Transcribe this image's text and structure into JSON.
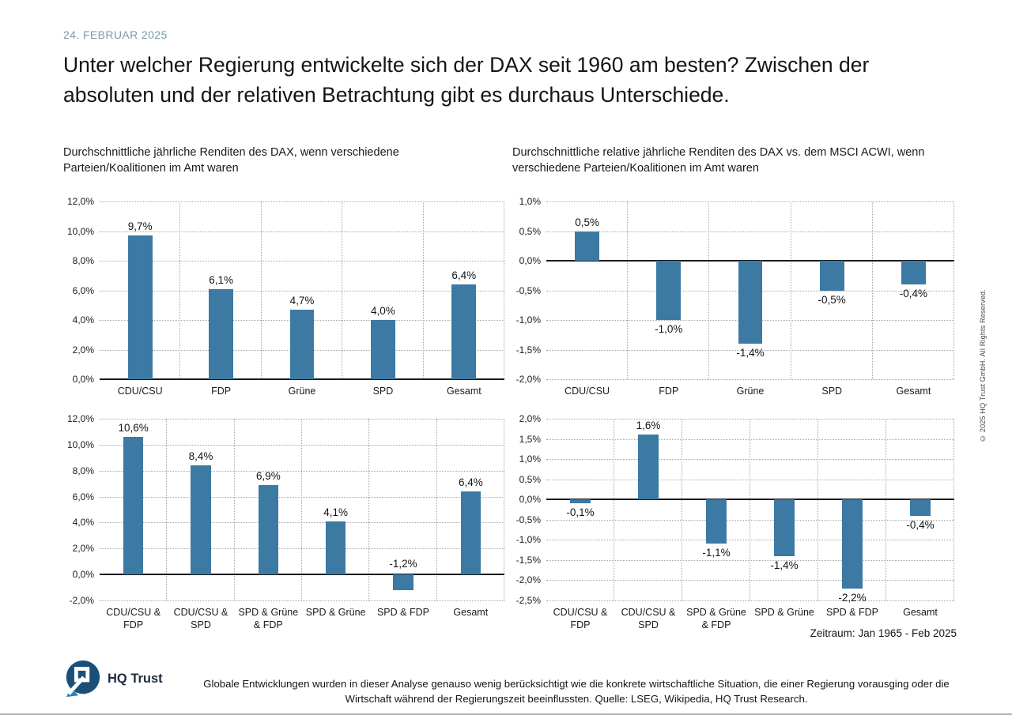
{
  "header": {
    "date": "24. FEBRUAR 2025",
    "title": "Unter welcher Regierung entwickelte sich der DAX seit 1960 am besten? Zwischen der absoluten und der relativen Betrachtung gibt es durchaus Unterschiede."
  },
  "chart_data": [
    {
      "type": "bar",
      "title": "Durchschnittliche jährliche Renditen des DAX, wenn verschiedene Parteien/Koalitionen im Amt waren",
      "categories": [
        "CDU/CSU",
        "FDP",
        "Grüne",
        "SPD",
        "Gesamt"
      ],
      "values": [
        9.7,
        6.1,
        4.7,
        4.0,
        6.4
      ],
      "value_labels": [
        "9,7%",
        "6,1%",
        "4,7%",
        "4,0%",
        "6,4%"
      ],
      "ylim": [
        0,
        12
      ],
      "ytick_step": 2,
      "ytick_labels": [
        "12,0%",
        "10,0%",
        "8,0%",
        "6,0%",
        "4,0%",
        "2,0%",
        "0,0%"
      ],
      "grid": true,
      "legend": "none",
      "bar_color": "#3c7aa3",
      "neg_label": "below_bar"
    },
    {
      "type": "bar",
      "title": "Durchschnittliche relative jährliche Renditen des DAX vs. dem MSCI ACWI, wenn verschiedene Parteien/Koalitionen im Amt waren",
      "categories": [
        "CDU/CSU",
        "FDP",
        "Grüne",
        "SPD",
        "Gesamt"
      ],
      "values": [
        0.5,
        -1.0,
        -1.4,
        -0.5,
        -0.4
      ],
      "value_labels": [
        "0,5%",
        "-1,0%",
        "-1,4%",
        "-0,5%",
        "-0,4%"
      ],
      "ylim": [
        -2,
        1
      ],
      "ytick_step": 0.5,
      "ytick_labels": [
        "1,0%",
        "0,5%",
        "0,0%",
        "-0,5%",
        "-1,0%",
        "-1,5%",
        "-2,0%"
      ],
      "grid": true,
      "legend": "none",
      "bar_color": "#3c7aa3",
      "neg_label": "below_bar"
    },
    {
      "type": "bar",
      "title": "",
      "categories": [
        "CDU/CSU &\nFDP",
        "CDU/CSU &\nSPD",
        "SPD & Grüne\n& FDP",
        "SPD & Grüne",
        "SPD & FDP",
        "Gesamt"
      ],
      "values": [
        10.6,
        8.4,
        6.9,
        4.1,
        -1.2,
        6.4
      ],
      "value_labels": [
        "10,6%",
        "8,4%",
        "6,9%",
        "4,1%",
        "-1,2%",
        "6,4%"
      ],
      "ylim": [
        -2,
        12
      ],
      "ytick_step": 2,
      "ytick_labels": [
        "12,0%",
        "10,0%",
        "8,0%",
        "6,0%",
        "4,0%",
        "2,0%",
        "0,0%",
        "-2,0%"
      ],
      "grid": true,
      "legend": "none",
      "bar_color": "#3c7aa3",
      "neg_label": "above_zero"
    },
    {
      "type": "bar",
      "title": "",
      "categories": [
        "CDU/CSU &\nFDP",
        "CDU/CSU &\nSPD",
        "SPD & Grüne\n& FDP",
        "SPD & Grüne",
        "SPD & FDP",
        "Gesamt"
      ],
      "values": [
        -0.1,
        1.6,
        -1.1,
        -1.4,
        -2.2,
        -0.4
      ],
      "value_labels": [
        "-0,1%",
        "1,6%",
        "-1,1%",
        "-1,4%",
        "-2,2%",
        "-0,4%"
      ],
      "ylim": [
        -2.5,
        2
      ],
      "ytick_step": 0.5,
      "ytick_labels": [
        "2,0%",
        "1,5%",
        "1,0%",
        "0,5%",
        "0,0%",
        "-0,5%",
        "-1,0%",
        "-1,5%",
        "-2,0%",
        "-2,5%"
      ],
      "grid": true,
      "legend": "none",
      "bar_color": "#3c7aa3",
      "neg_label": "below_bar"
    }
  ],
  "footnote": "Zeitraum: Jan 1965 - Feb 2025",
  "footer": {
    "brand": "HQ Trust",
    "disclaimer": "Globale Entwicklungen wurden in dieser Analyse genauso wenig berücksichtigt wie die konkrete wirtschaftliche Situation, die einer Regierung vorausging oder die Wirtschaft während der Regierungszeit beeinflussten. Quelle: LSEG, Wikipedia, HQ Trust Research."
  },
  "copyright": "© 2025 HQ Trust GmbH. All Rights Reserved.",
  "colors": {
    "bar": "#3c7aa3",
    "date_text": "#7c9aab",
    "axis": "#1a1a1a",
    "gridline": "#a8a8a8",
    "brand_navy": "#1e2b3c",
    "logo_blue_dark": "#1a4f78",
    "logo_blue_light": "#2e7fb4"
  }
}
